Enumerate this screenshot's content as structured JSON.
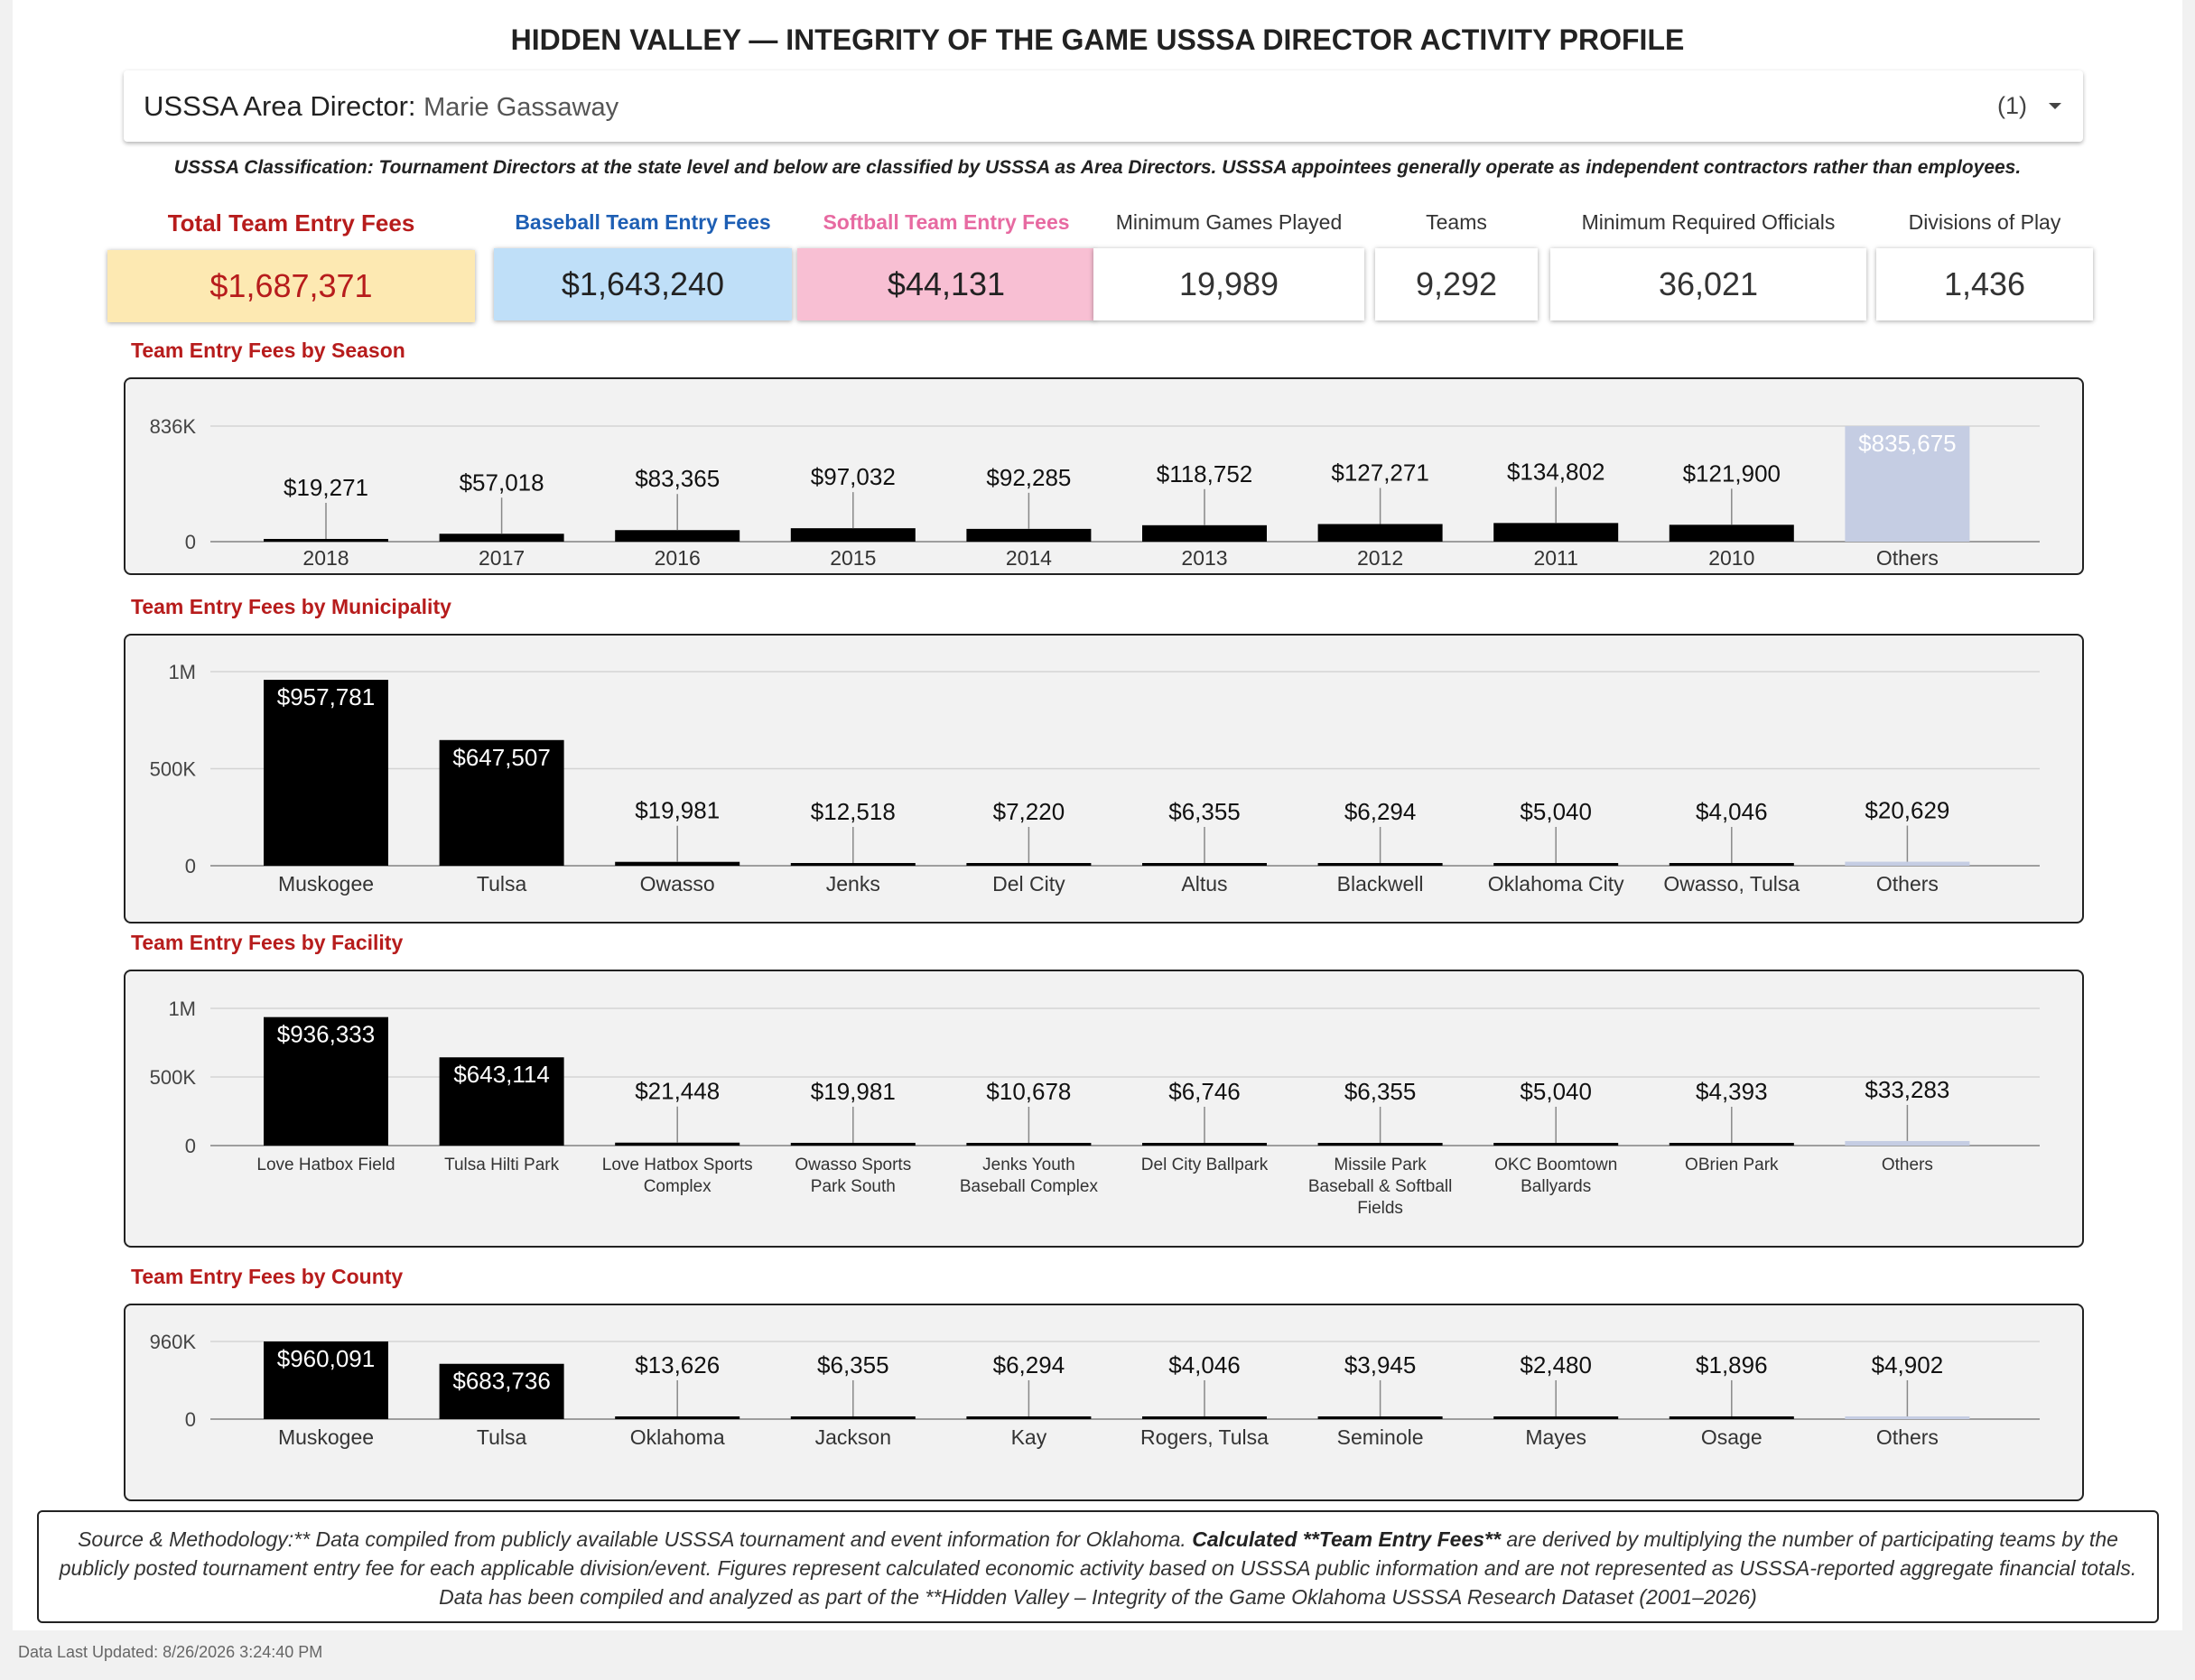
{
  "header": {
    "title": "HIDDEN VALLEY — INTEGRITY OF THE GAME USSSA DIRECTOR ACTIVITY PROFILE"
  },
  "selector": {
    "label": "USSSA Area Director",
    "value": "Marie Gassaway",
    "count": "(1)"
  },
  "classification": "USSSA Classification: Tournament Directors at the state level and below are classified by USSSA as Area Directors. USSSA appointees generally operate as independent contractors rather than employees.",
  "kpis": [
    {
      "label": "Total Team Entry Fees",
      "value": "$1,687,371",
      "label_color": "#b71c1c",
      "bg": "#fde9b2",
      "value_color": "#b71c1c"
    },
    {
      "label": "Baseball Team Entry Fees",
      "value": "$1,643,240",
      "label_color": "#1e5fb4",
      "bg": "#bfdff8",
      "value_color": "#222222"
    },
    {
      "label": "Softball Team Entry Fees",
      "value": "$44,131",
      "label_color": "#e76aa1",
      "bg": "#f8bfd3",
      "value_color": "#222222"
    },
    {
      "label": "Minimum Games Played",
      "value": "19,989",
      "label_color": "#333333",
      "bg": "#ffffff",
      "value_color": "#333333"
    },
    {
      "label": "Teams",
      "value": "9,292",
      "label_color": "#333333",
      "bg": "#ffffff",
      "value_color": "#333333"
    },
    {
      "label": "Minimum Required Officials",
      "value": "36,021",
      "label_color": "#333333",
      "bg": "#ffffff",
      "value_color": "#333333"
    },
    {
      "label": "Divisions of Play",
      "value": "1,436",
      "label_color": "#333333",
      "bg": "#ffffff",
      "value_color": "#333333"
    }
  ],
  "colors": {
    "bar": "#000000",
    "others_bar": "#c5cde3",
    "grid": "#d4d4d4"
  },
  "chart_data": [
    {
      "type": "bar",
      "title": "Team Entry Fees by Season",
      "categories": [
        "2018",
        "2017",
        "2016",
        "2015",
        "2014",
        "2013",
        "2012",
        "2011",
        "2010",
        "Others"
      ],
      "values": [
        19271,
        57018,
        83365,
        97032,
        92285,
        118752,
        127271,
        134802,
        121900,
        835675
      ],
      "value_labels": [
        "$19,271",
        "$57,018",
        "$83,365",
        "$97,032",
        "$92,285",
        "$118,752",
        "$127,271",
        "$134,802",
        "$121,900",
        "$835,675"
      ],
      "ylim": [
        0,
        836000
      ],
      "y_ticks": [
        {
          "v": 0,
          "label": "0"
        },
        {
          "v": 836000,
          "label": "836K"
        }
      ],
      "grid": true
    },
    {
      "type": "bar",
      "title": "Team Entry Fees by Municipality",
      "categories": [
        "Muskogee",
        "Tulsa",
        "Owasso",
        "Jenks",
        "Del City",
        "Altus",
        "Blackwell",
        "Oklahoma City",
        "Owasso, Tulsa",
        "Others"
      ],
      "values": [
        957781,
        647507,
        19981,
        12518,
        7220,
        6355,
        6294,
        5040,
        4046,
        20629
      ],
      "value_labels": [
        "$957,781",
        "$647,507",
        "$19,981",
        "$12,518",
        "$7,220",
        "$6,355",
        "$6,294",
        "$5,040",
        "$4,046",
        "$20,629"
      ],
      "ylim": [
        0,
        1000000
      ],
      "y_ticks": [
        {
          "v": 0,
          "label": "0"
        },
        {
          "v": 500000,
          "label": "500K"
        },
        {
          "v": 1000000,
          "label": "1M"
        }
      ],
      "grid": true
    },
    {
      "type": "bar",
      "title": "Team Entry Fees by Facility",
      "categories": [
        "Love Hatbox Field",
        "Tulsa Hilti Park",
        "Love Hatbox Sports Complex",
        "Owasso Sports Park South",
        "Jenks Youth Baseball Complex",
        "Del City Ballpark",
        "Missile Park Baseball & Softball Fields",
        "OKC Boomtown Ballyards",
        "OBrien Park",
        "Others"
      ],
      "category_lines": [
        [
          "Love Hatbox Field"
        ],
        [
          "Tulsa Hilti Park"
        ],
        [
          "Love Hatbox Sports",
          "Complex"
        ],
        [
          "Owasso Sports",
          "Park South"
        ],
        [
          "Jenks Youth",
          "Baseball Complex"
        ],
        [
          "Del City Ballpark"
        ],
        [
          "Missile Park",
          "Baseball & Softball",
          "Fields"
        ],
        [
          "OKC Boomtown",
          "Ballyards"
        ],
        [
          "OBrien Park"
        ],
        [
          "Others"
        ]
      ],
      "values": [
        936333,
        643114,
        21448,
        19981,
        10678,
        6746,
        6355,
        5040,
        4393,
        33283
      ],
      "value_labels": [
        "$936,333",
        "$643,114",
        "$21,448",
        "$19,981",
        "$10,678",
        "$6,746",
        "$6,355",
        "$5,040",
        "$4,393",
        "$33,283"
      ],
      "ylim": [
        0,
        1000000
      ],
      "y_ticks": [
        {
          "v": 0,
          "label": "0"
        },
        {
          "v": 500000,
          "label": "500K"
        },
        {
          "v": 1000000,
          "label": "1M"
        }
      ],
      "grid": true
    },
    {
      "type": "bar",
      "title": "Team Entry Fees by County",
      "categories": [
        "Muskogee",
        "Tulsa",
        "Oklahoma",
        "Jackson",
        "Kay",
        "Rogers, Tulsa",
        "Seminole",
        "Mayes",
        "Osage",
        "Others"
      ],
      "values": [
        960091,
        683736,
        13626,
        6355,
        6294,
        4046,
        3945,
        2480,
        1896,
        4902
      ],
      "value_labels": [
        "$960,091",
        "$683,736",
        "$13,626",
        "$6,355",
        "$6,294",
        "$4,046",
        "$3,945",
        "$2,480",
        "$1,896",
        "$4,902"
      ],
      "ylim": [
        0,
        960000
      ],
      "y_ticks": [
        {
          "v": 0,
          "label": "0"
        },
        {
          "v": 960000,
          "label": "960K"
        }
      ],
      "grid": true
    }
  ],
  "footer": {
    "part1": "Source & Methodology:** Data compiled from publicly available USSSA tournament and event information for Oklahoma. ",
    "bold": "Calculated **Team Entry Fees**",
    "part2": " are derived by multiplying the number of participating teams by the publicly posted tournament entry fee for each applicable division/event. Figures represent calculated economic activity based on USSSA public information and are not represented as USSSA-reported aggregate financial totals. Data has been compiled and analyzed as part of the **Hidden Valley – Integrity of the Game Oklahoma USSSA Research Dataset (2001–2026)"
  },
  "last_updated": "Data Last Updated: 8/26/2026 3:24:40 PM"
}
